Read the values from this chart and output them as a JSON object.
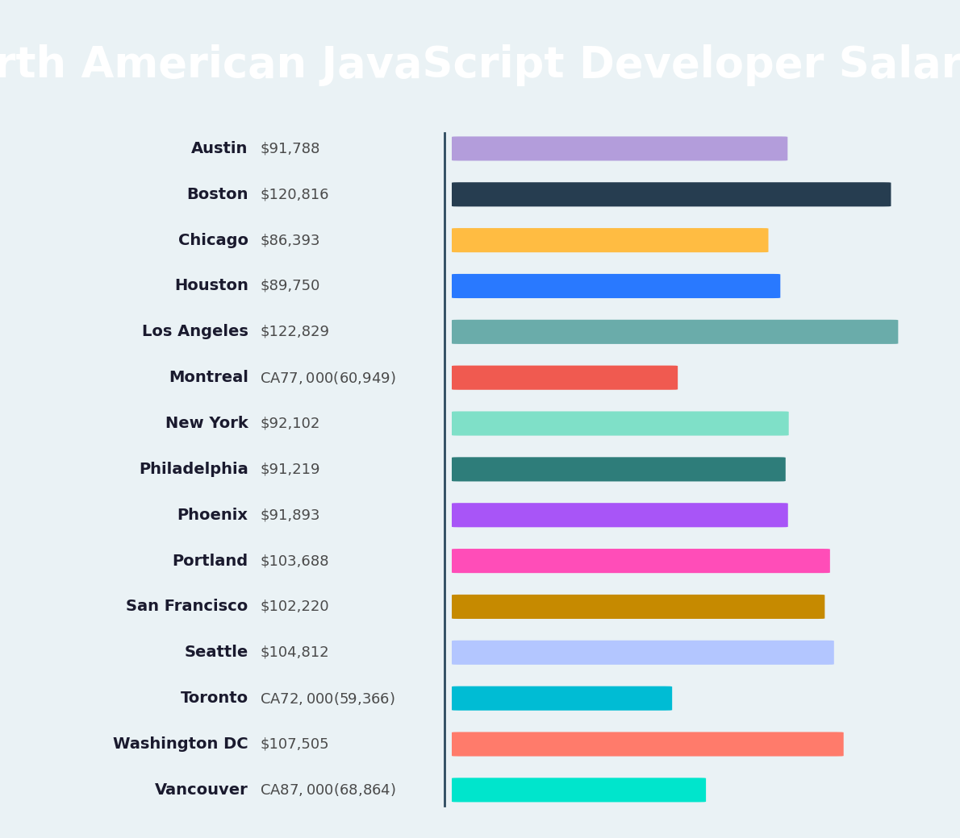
{
  "title": "North American JavaScript Developer Salaries",
  "title_bg_color": "#2d4a5e",
  "title_text_color": "#ffffff",
  "bg_color": "#eaf2f5",
  "cities": [
    "Austin",
    "Boston",
    "Chicago",
    "Houston",
    "Los Angeles",
    "Montreal",
    "New York",
    "Philadelphia",
    "Phoenix",
    "Portland",
    "San Francisco",
    "Seattle",
    "Toronto",
    "Washington DC",
    "Vancouver"
  ],
  "labels": [
    "$91,788",
    "$120,816",
    "$86,393",
    "$89,750",
    "$122,829",
    "CA$77,000 ($60,949)",
    "$92,102",
    "$91,219",
    "$91,893",
    "$103,688",
    "$102,220",
    "$104,812",
    "CA$72,000 ($59,366)",
    "$107,505",
    "CA$87,000 ($68,864)"
  ],
  "values": [
    91788,
    120816,
    86393,
    89750,
    122829,
    60949,
    92102,
    91219,
    91893,
    103688,
    102220,
    104812,
    59366,
    107505,
    68864
  ],
  "bar_colors": [
    "#b39ddb",
    "#263d50",
    "#ffbc42",
    "#2979ff",
    "#6aacaa",
    "#f05a50",
    "#7fe0c8",
    "#2e7d7a",
    "#a855f7",
    "#ff4db8",
    "#c68a00",
    "#b3c6ff",
    "#00bcd4",
    "#ff7b6b",
    "#00e5cc"
  ],
  "divider_color": "#2d4a5e",
  "city_label_color": "#1a1a2e",
  "value_label_color": "#4a4a4a",
  "title_fontsize": 38,
  "label_fontsize": 14,
  "value_fontsize": 13,
  "fig_width": 11.9,
  "fig_height": 10.4,
  "dpi": 100
}
